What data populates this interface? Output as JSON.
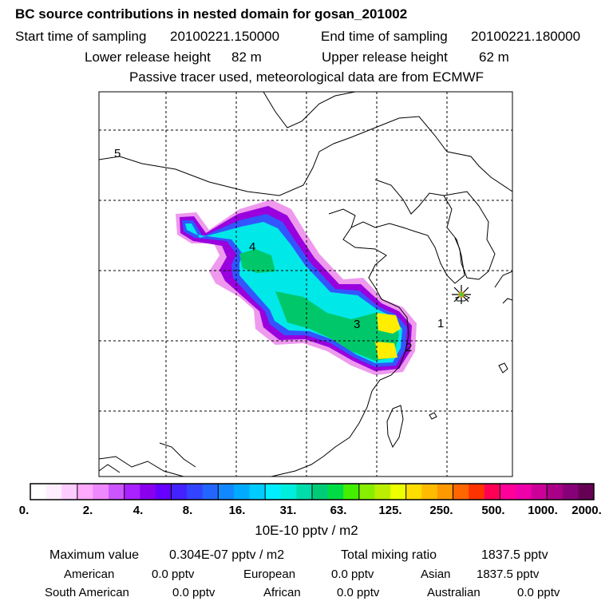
{
  "header": {
    "title": "BC  source contributions in nested domain for gosan_201002",
    "start_label": "Start time of sampling",
    "start_value": "20100221.150000",
    "end_label": "End time of sampling",
    "end_value": "20100221.180000",
    "lower_label": "Lower release height",
    "lower_value": "82 m",
    "upper_label": "Upper release height",
    "upper_value": "62 m",
    "note": "Passive tracer used, meteorological data are from ECMWF"
  },
  "map": {
    "region_labels": [
      "1",
      "2",
      "3",
      "4",
      "5"
    ],
    "receptor_icon": "star-burst-icon",
    "receptor_color": "#000000",
    "plume_colors": [
      "#ee99ee",
      "#9900dd",
      "#3355ff",
      "#00e8e8",
      "#00c86a",
      "#ffee00"
    ]
  },
  "colorbar": {
    "colors": [
      "#ffffff",
      "#ffeeff",
      "#ffccff",
      "#ffaaff",
      "#ee88ff",
      "#cc55ff",
      "#aa22ff",
      "#8800ee",
      "#6600ff",
      "#4422ff",
      "#3344ff",
      "#2266ff",
      "#1188ff",
      "#00aaff",
      "#00ccff",
      "#00eeff",
      "#00eedd",
      "#00ddaa",
      "#00cc77",
      "#00dd44",
      "#44ee00",
      "#88ee00",
      "#bbee00",
      "#eeff00",
      "#ffdd00",
      "#ffbb00",
      "#ff9900",
      "#ff6600",
      "#ff3300",
      "#ff0055",
      "#ff0099",
      "#ee00aa",
      "#cc0099",
      "#aa0088",
      "#880077",
      "#660055"
    ],
    "tick_labels": [
      "0.",
      "2.",
      "4.",
      "8.",
      "16.",
      "31.",
      "63.",
      "125.",
      "250.",
      "500.",
      "1000.",
      "2000."
    ],
    "units": "10E-10 pptv / m2"
  },
  "summary": {
    "max_label": "Maximum value",
    "max_value": "0.304E-07 pptv / m2",
    "total_label": "Total mixing ratio",
    "total_value": "1837.5 pptv",
    "american_label": "American",
    "american_value": "0.0 pptv",
    "european_label": "European",
    "european_value": "0.0 pptv",
    "asian_label": "Asian",
    "asian_value": "1837.5 pptv",
    "south_american_label": "South American",
    "south_american_value": "0.0 pptv",
    "african_label": "African",
    "african_value": "0.0 pptv",
    "australian_label": "Australian",
    "australian_value": "0.0 pptv"
  }
}
